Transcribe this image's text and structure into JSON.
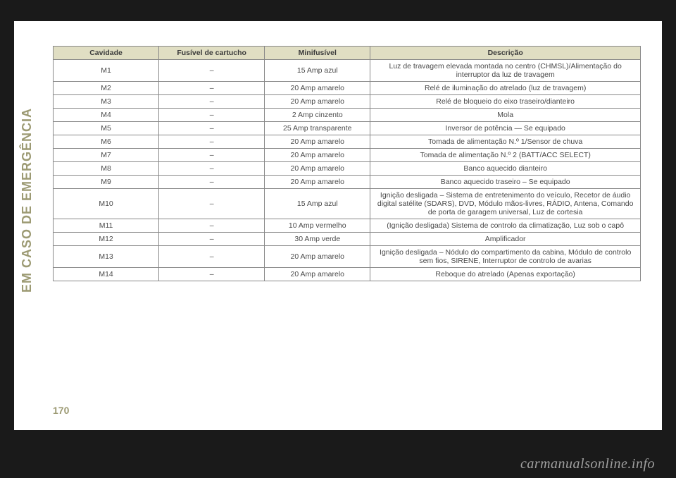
{
  "side_label": "EM CASO DE EMERGÊNCIA",
  "page_number": "170",
  "watermark": "carmanualsonline.info",
  "table": {
    "columns": [
      "Cavidade",
      "Fusível de cartucho",
      "Minifusível",
      "Descrição"
    ],
    "column_widths": [
      "18%",
      "18%",
      "18%",
      "46%"
    ],
    "header_bg": "#e0dec3",
    "border_color": "#888888",
    "text_color": "#4a4a4a",
    "fontsize": 10.5,
    "rows": [
      [
        "M1",
        "–",
        "15 Amp azul",
        "Luz de travagem elevada montada no centro (CHMSL)/Alimentação do interruptor da luz de travagem"
      ],
      [
        "M2",
        "–",
        "20 Amp amarelo",
        "Relé de iluminação do atrelado (luz de travagem)"
      ],
      [
        "M3",
        "–",
        "20 Amp amarelo",
        "Relé de bloqueio do eixo traseiro/dianteiro"
      ],
      [
        "M4",
        "–",
        "2 Amp cinzento",
        "Mola"
      ],
      [
        "M5",
        "–",
        "25 Amp transparente",
        "Inversor de potência — Se equipado"
      ],
      [
        "M6",
        "–",
        "20 Amp amarelo",
        "Tomada de alimentação N.º 1/Sensor de chuva"
      ],
      [
        "M7",
        "–",
        "20 Amp amarelo",
        "Tomada de alimentação N.º 2 (BATT/ACC SELECT)"
      ],
      [
        "M8",
        "–",
        "20 Amp amarelo",
        "Banco aquecido dianteiro"
      ],
      [
        "M9",
        "–",
        "20 Amp amarelo",
        "Banco aquecido traseiro – Se equipado"
      ],
      [
        "M10",
        "–",
        "15 Amp azul",
        "Ignição desligada – Sistema de entretenimento do veículo, Recetor de áudio digital satélite (SDARS), DVD, Módulo mãos-livres, RÁDIO, Antena, Comando de porta de garagem universal, Luz de cortesia"
      ],
      [
        "M11",
        "–",
        "10 Amp vermelho",
        "(Ignição desligada) Sistema de controlo da climatização, Luz sob o capô"
      ],
      [
        "M12",
        "–",
        "30 Amp verde",
        "Amplificador"
      ],
      [
        "M13",
        "–",
        "20 Amp amarelo",
        "Ignição desligada – Nódulo do compartimento da cabina, Módulo de controlo sem fios, SIRENE, Interruptor de controlo de avarias"
      ],
      [
        "M14",
        "–",
        "20 Amp amarelo",
        "Reboque do atrelado (Apenas exportação)"
      ]
    ]
  },
  "colors": {
    "page_bg": "#ffffff",
    "body_bg": "#1a1a1a",
    "accent": "#9c9a73",
    "watermark": "#a0a0a0"
  }
}
